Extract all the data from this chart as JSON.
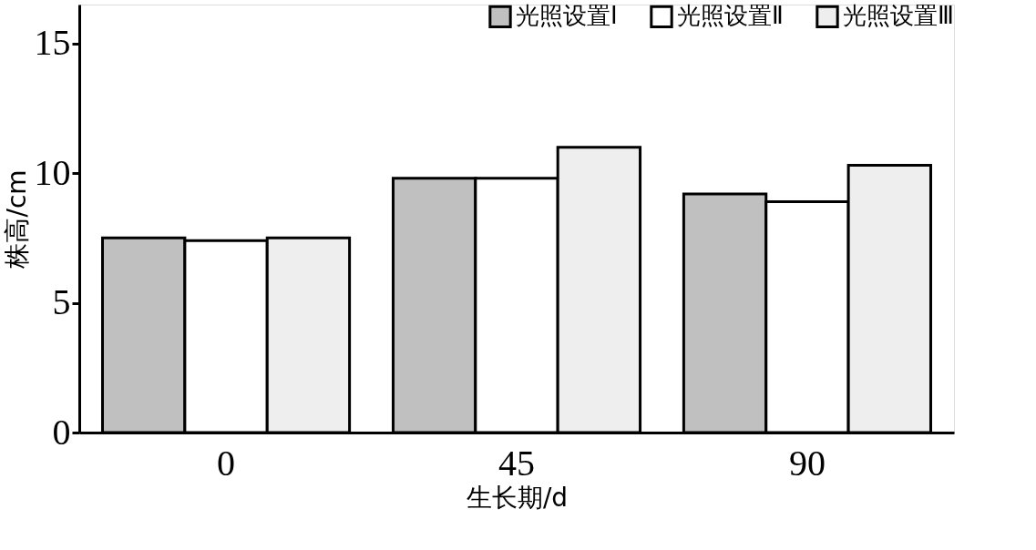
{
  "chart_data": {
    "type": "bar",
    "xlabel": "生长期/d",
    "ylabel": "株高/cm",
    "categories": [
      "0",
      "45",
      "90"
    ],
    "series": [
      {
        "name": "光照设置Ⅰ",
        "color": "#c0c0c0",
        "values": [
          7.5,
          9.8,
          9.2
        ]
      },
      {
        "name": "光照设置Ⅱ",
        "color": "#ffffff",
        "values": [
          7.4,
          9.8,
          8.9
        ]
      },
      {
        "name": "光照设置Ⅲ",
        "color": "#eeeeee",
        "values": [
          7.5,
          11.0,
          10.3
        ]
      }
    ],
    "ylim": [
      0,
      16.5
    ],
    "yticks": [
      0,
      5,
      10,
      15
    ],
    "grid": false,
    "legend": "top right"
  }
}
